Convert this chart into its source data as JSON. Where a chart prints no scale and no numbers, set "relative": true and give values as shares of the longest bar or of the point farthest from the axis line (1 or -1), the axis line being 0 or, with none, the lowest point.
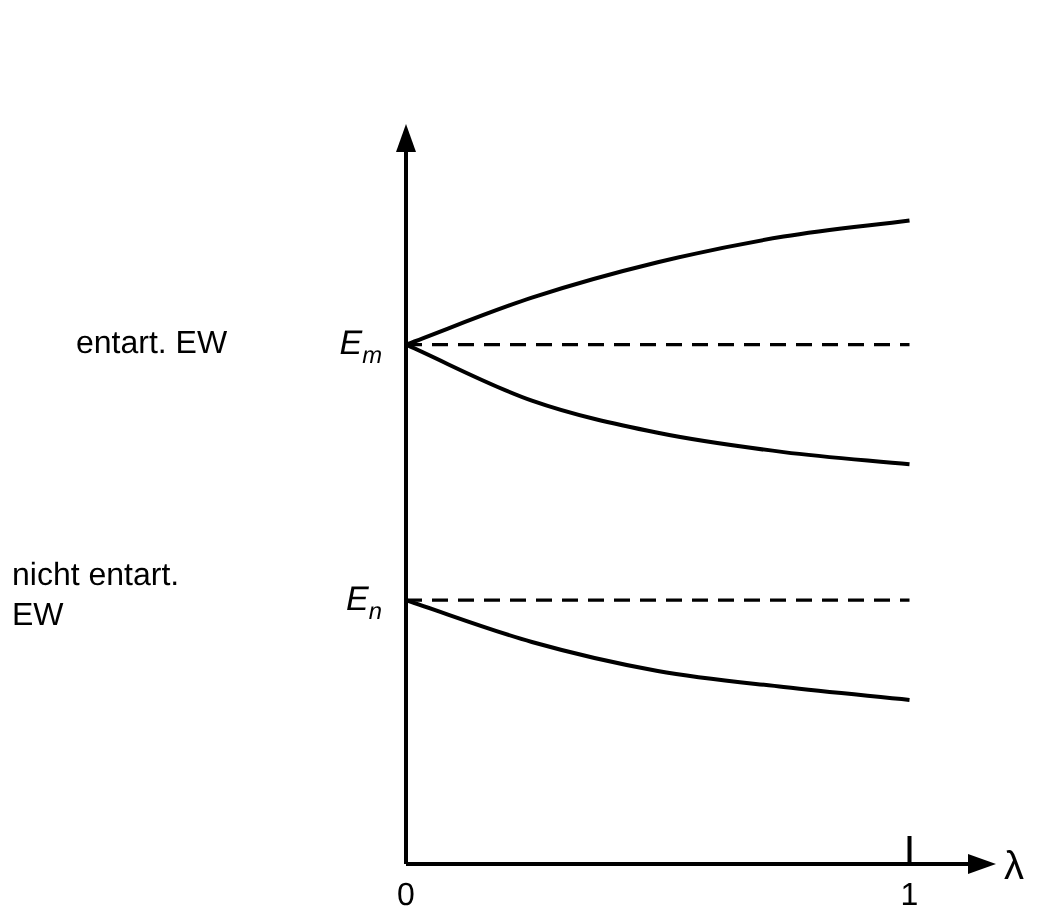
{
  "chart_data": {
    "type": "line",
    "relative": true,
    "xlabel": "λ",
    "xlim": [
      0,
      1.14
    ],
    "xticks": [
      0,
      1
    ],
    "legend": false,
    "marker": "none",
    "line_style": "solid",
    "series": [
      {
        "color": "#000000",
        "x": [
          0,
          0.25,
          0.5,
          0.75,
          1
        ],
        "values": [
          0.807,
          0.88,
          0.935,
          0.975,
          1
        ]
      },
      {
        "color": "#000000",
        "x": [
          0,
          0.25,
          0.5,
          0.75,
          1
        ],
        "values": [
          0.807,
          0.72,
          0.67,
          0.64,
          0.621
        ]
      },
      {
        "color": "#000000",
        "x": [
          0,
          0.25,
          0.5,
          0.75,
          1
        ],
        "values": [
          0.41,
          0.345,
          0.3,
          0.275,
          0.255
        ]
      }
    ],
    "ref_lines": [
      {
        "axis": "y",
        "value": 0.807,
        "label": "E$_{m}$",
        "color": "#000000",
        "line_style": "dashed"
      },
      {
        "axis": "y",
        "value": 0.41,
        "label": "E$_{n}$",
        "color": "#000000",
        "line_style": "dashed"
      }
    ],
    "annotations": [
      "entart. EW",
      "nicht entart. EW"
    ]
  }
}
